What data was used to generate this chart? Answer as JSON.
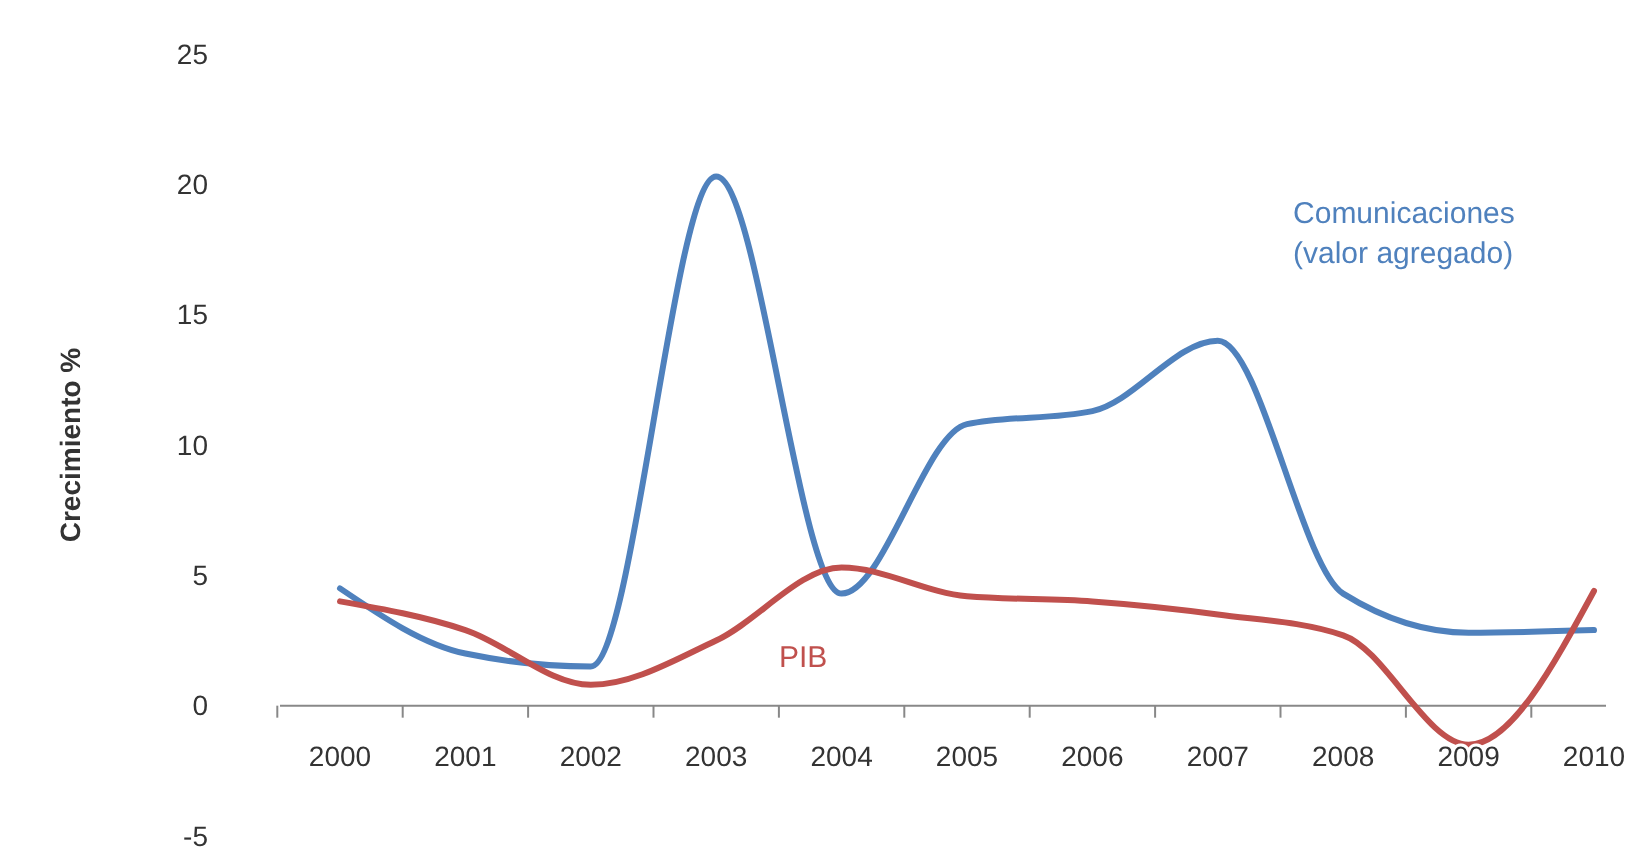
{
  "chart_data": {
    "type": "line",
    "ylabel": "Crecimiento %",
    "categories": [
      "2000",
      "2001",
      "2002",
      "2003",
      "2004",
      "2005",
      "2006",
      "2007",
      "2008",
      "2009",
      "2010"
    ],
    "series": [
      {
        "name": "Comunicaciones (valor agregado)",
        "color": "#4f81bd",
        "values": [
          4.5,
          2.0,
          1.5,
          20.3,
          4.3,
          10.8,
          11.3,
          14.0,
          4.3,
          2.8,
          2.9
        ]
      },
      {
        "name": "PIB",
        "color": "#c0504d",
        "values": [
          4.0,
          2.9,
          0.8,
          2.5,
          5.3,
          4.2,
          4.0,
          3.5,
          2.7,
          -1.5,
          4.4
        ]
      }
    ],
    "ylim": [
      -5,
      25
    ],
    "yticks": [
      -5,
      0,
      5,
      10,
      15,
      20,
      25
    ],
    "grid": false,
    "marker": "none",
    "line_style": "solid"
  }
}
